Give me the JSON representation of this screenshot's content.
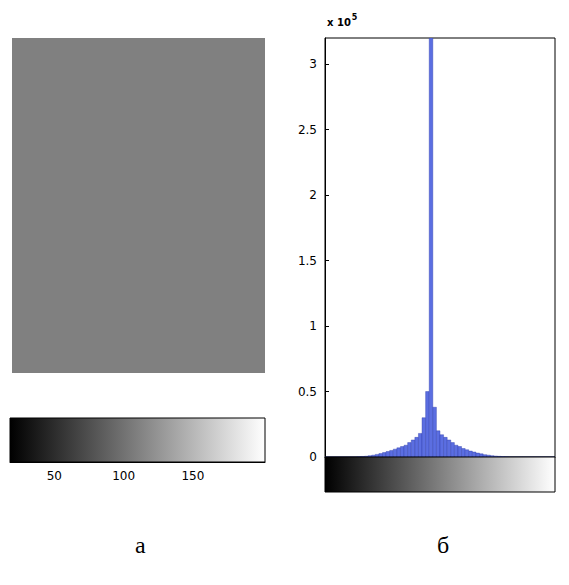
{
  "chart_data": [
    {
      "type": "image",
      "panel": "а",
      "colorbar": {
        "range": [
          18,
          202
        ],
        "ticks": [
          50,
          100,
          150
        ]
      }
    },
    {
      "type": "histogram",
      "panel": "б",
      "y_scale": {
        "base": "x 10",
        "exponent": "5"
      },
      "bins": [
        0,
        4,
        8,
        12,
        16,
        20,
        24,
        28,
        32,
        36,
        40,
        44,
        48,
        52,
        56,
        60,
        64,
        68,
        72,
        76,
        80,
        84,
        88,
        92,
        96,
        100,
        104,
        108,
        112,
        116,
        120,
        124,
        128,
        132,
        136,
        140,
        144,
        148,
        152,
        156,
        160,
        164,
        168,
        172,
        176,
        180,
        184,
        188,
        192,
        196,
        200,
        204,
        208,
        212,
        216,
        220,
        224,
        228,
        232,
        236,
        240,
        244,
        248,
        252,
        256
      ],
      "values": [
        0,
        0,
        0,
        0,
        0,
        0,
        0,
        0,
        0,
        0.002,
        0.004,
        0.006,
        0.01,
        0.014,
        0.02,
        0.026,
        0.034,
        0.042,
        0.05,
        0.06,
        0.07,
        0.08,
        0.09,
        0.11,
        0.13,
        0.15,
        0.18,
        0.3,
        0.5,
        3.2,
        0.38,
        0.2,
        0.17,
        0.15,
        0.13,
        0.11,
        0.09,
        0.08,
        0.065,
        0.055,
        0.045,
        0.038,
        0.03,
        0.024,
        0.018,
        0.014,
        0.01,
        0.007,
        0.005,
        0.003,
        0.002,
        0,
        0,
        0,
        0,
        0,
        0,
        0,
        0,
        0,
        0,
        0,
        0,
        0
      ],
      "color": "#5b6ee1",
      "xlim": [
        0,
        256
      ],
      "ylim": [
        0,
        3.2
      ],
      "yticks": [
        0,
        0.5,
        1,
        1.5,
        2,
        2.5,
        3
      ],
      "tick_labels": "y",
      "grid": false
    }
  ]
}
